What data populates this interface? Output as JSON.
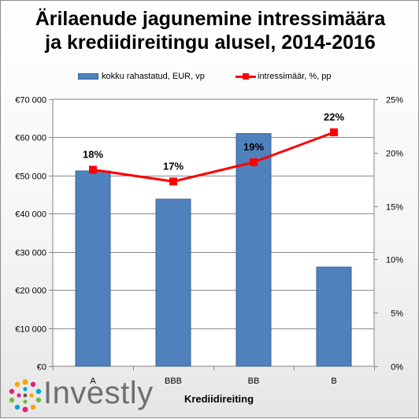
{
  "chart_data": {
    "type": "bar",
    "title_lines": [
      "Ärilaenude jagunemine intressimäära",
      "ja krediidireitingu alusel, 2014-2016"
    ],
    "xlabel": "Krediidireiting",
    "categories": [
      "A",
      "BBB",
      "BB",
      "B"
    ],
    "series": [
      {
        "name": "kokku rahastatud, EUR, vp",
        "type": "bar",
        "axis": "left",
        "color": "#4f81bd",
        "values": [
          51200,
          43800,
          61000,
          26000
        ]
      },
      {
        "name": "intressimäär, %, pp",
        "type": "line",
        "axis": "right",
        "color": "#ff0000",
        "values": [
          18.4,
          17.3,
          19.1,
          21.9
        ],
        "data_labels": [
          "18%",
          "17%",
          "19%",
          "22%"
        ]
      }
    ],
    "left_axis": {
      "min": 0,
      "max": 70000,
      "step": 10000,
      "tick_labels": [
        "€0",
        "€10 000",
        "€20 000",
        "€30 000",
        "€40 000",
        "€50 000",
        "€60 000",
        "€70 000"
      ]
    },
    "right_axis": {
      "min": 0,
      "max": 25,
      "step": 5,
      "tick_labels": [
        "0%",
        "5%",
        "10%",
        "15%",
        "20%",
        "25%"
      ]
    },
    "grid": true,
    "legend_position": "top"
  },
  "logo": {
    "text": "Investly",
    "name": "investly-logo"
  }
}
